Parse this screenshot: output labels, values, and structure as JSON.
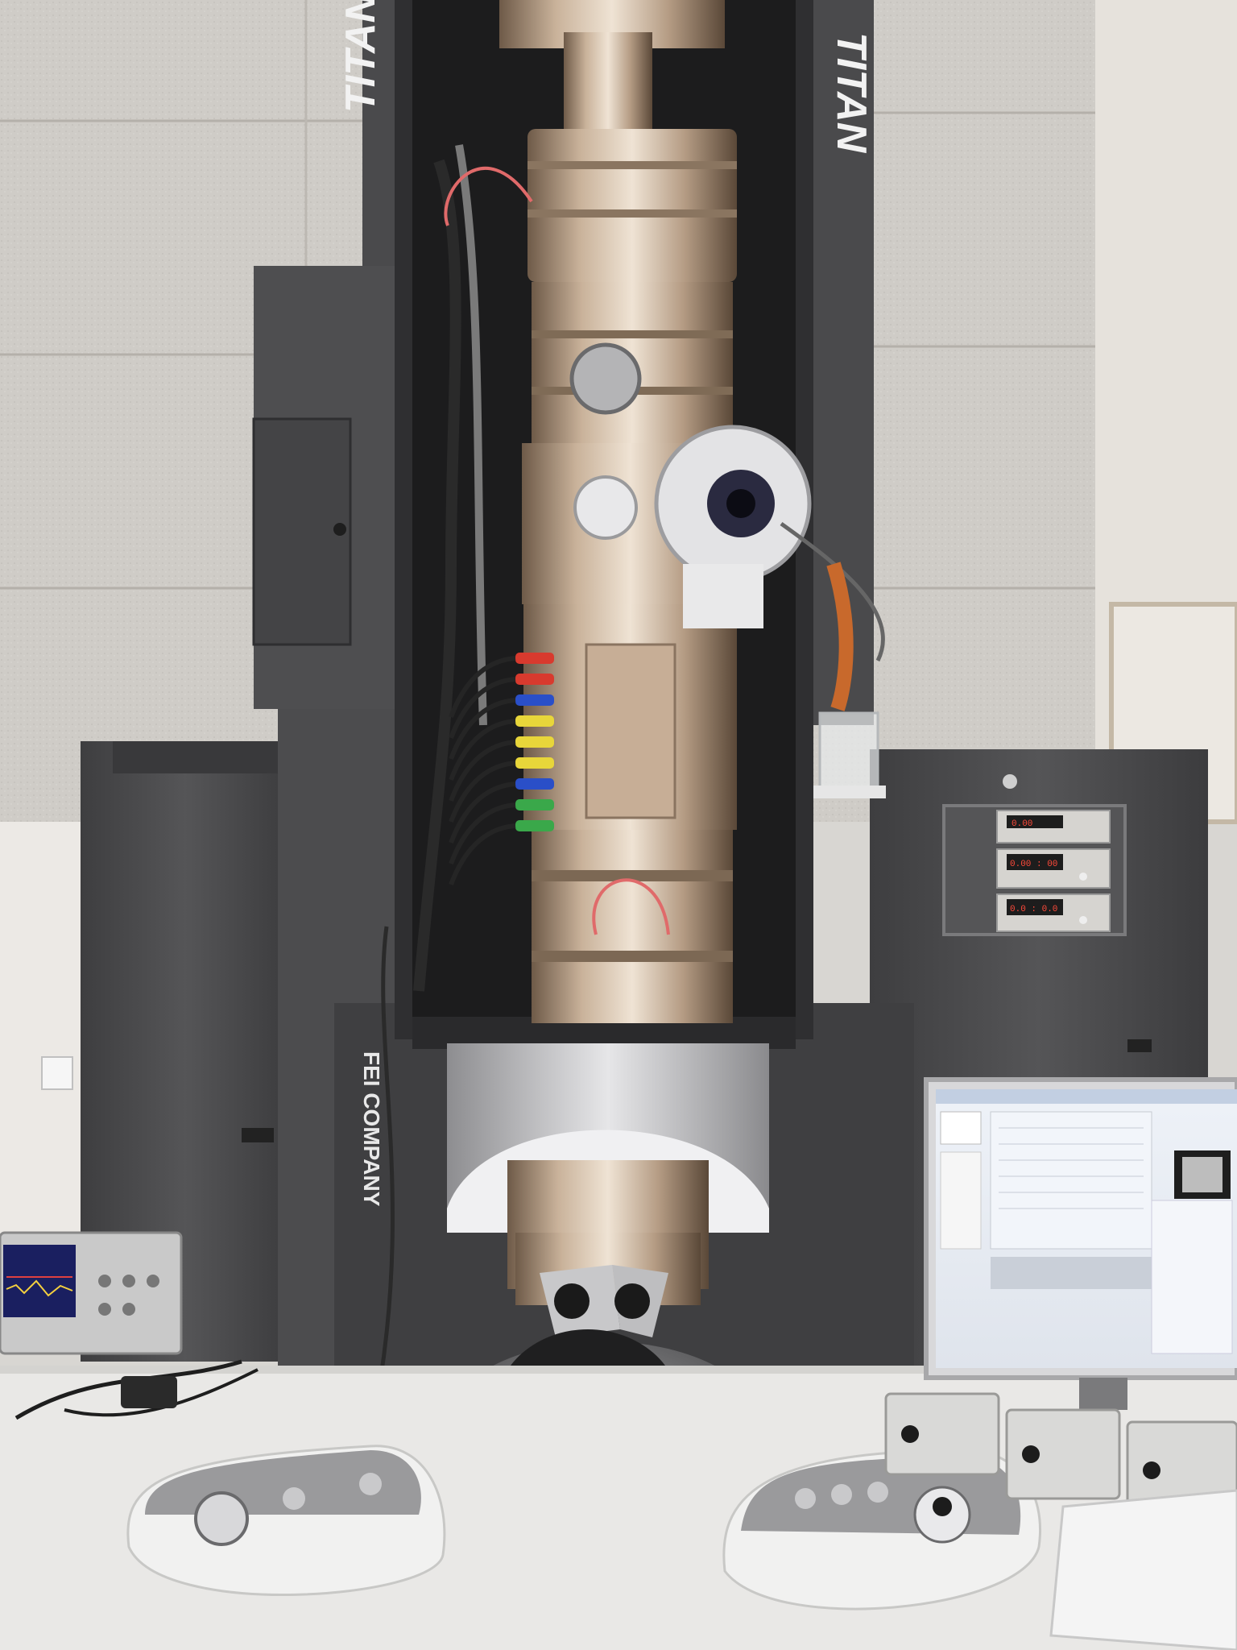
{
  "scene": {
    "description_label": "Transmission electron microscope laboratory photo"
  },
  "column": {
    "brand_left": "TITAN",
    "brand_right": "TITAN",
    "manufacturer": "FEI COMPANY"
  },
  "cable_colors": [
    "#d83a2e",
    "#d83a2e",
    "#2a4fc8",
    "#e8d63a",
    "#e8d63a",
    "#e8d63a",
    "#2a4fc8",
    "#3aa84a",
    "#3aa84a"
  ],
  "readouts": [
    {
      "value": "0.00"
    },
    {
      "value": "0.00 : 00"
    },
    {
      "value": "0.0 : 0.0"
    }
  ],
  "colors": {
    "wall": "#cfccc7",
    "cabinet": "#4a4a4c",
    "metal": "#b9a48e",
    "desk": "#e9e8e6"
  }
}
